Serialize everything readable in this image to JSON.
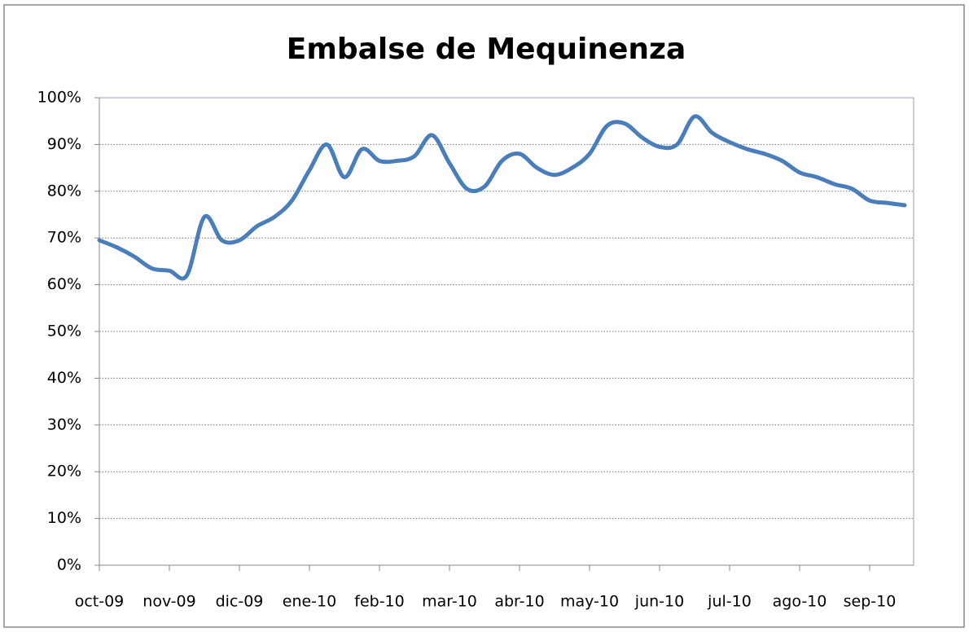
{
  "chart_data": {
    "type": "line",
    "title": "Embalse de Mequinenza",
    "categories": [
      "oct-09",
      null,
      null,
      null,
      "nov-09",
      null,
      null,
      null,
      "dic-09",
      null,
      null,
      null,
      "ene-10",
      null,
      null,
      null,
      "feb-10",
      null,
      null,
      null,
      "mar-10",
      null,
      null,
      null,
      "abr-10",
      null,
      null,
      null,
      "may-10",
      null,
      null,
      null,
      "jun-10",
      null,
      null,
      null,
      "jul-10",
      null,
      null,
      null,
      "ago-10",
      null,
      null,
      null,
      "sep-10",
      null,
      null
    ],
    "series": [
      {
        "name": "Embalse de Mequinenza",
        "color": "#4a7ebb",
        "values": [
          69.5,
          68,
          66,
          63.5,
          63,
          62,
          74.5,
          69.5,
          69.5,
          72.5,
          74.5,
          78,
          84.5,
          90,
          83,
          89,
          86.5,
          86.5,
          87.5,
          92,
          86,
          80.5,
          81,
          86.5,
          88,
          85,
          83.5,
          85,
          88,
          94,
          94.5,
          91.5,
          89.5,
          90,
          96,
          92.5,
          90.5,
          89,
          88,
          86.5,
          84,
          83,
          81.5,
          80.5,
          78,
          77.5,
          77
        ]
      }
    ],
    "ylim": [
      0,
      100
    ],
    "yticks": [
      {
        "value": 0,
        "label": "0%"
      },
      {
        "value": 10,
        "label": "10%"
      },
      {
        "value": 20,
        "label": "20%"
      },
      {
        "value": 30,
        "label": "30%"
      },
      {
        "value": 40,
        "label": "40%"
      },
      {
        "value": 50,
        "label": "50%"
      },
      {
        "value": 60,
        "label": "60%"
      },
      {
        "value": 70,
        "label": "70%"
      },
      {
        "value": 80,
        "label": "80%"
      },
      {
        "value": 90,
        "label": "90%"
      },
      {
        "value": 100,
        "label": "100%"
      }
    ],
    "grid": true,
    "smooth": true
  }
}
